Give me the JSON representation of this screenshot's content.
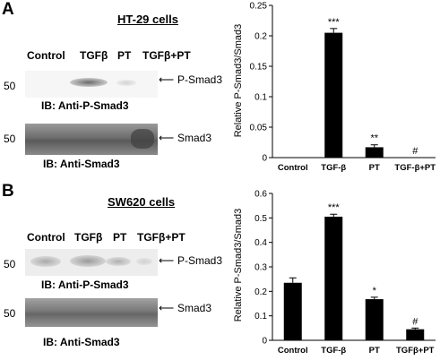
{
  "panels": [
    {
      "letter": "A",
      "cells": "HT-29 cells",
      "lanes": [
        "Control",
        "TGFβ",
        "PT",
        "TGFβ+PT"
      ],
      "blots": [
        {
          "mw": "50",
          "band": "P-Smad3",
          "ib": "IB: Anti-P-Smad3"
        },
        {
          "mw": "50",
          "band": "Smad3",
          "ib": "IB: Anti-Smad3"
        }
      ]
    },
    {
      "letter": "B",
      "cells": "SW620 cells",
      "lanes": [
        "Control",
        "TGFβ",
        "PT",
        "TGFβ+PT"
      ],
      "blots": [
        {
          "mw": "50",
          "band": "P-Smad3",
          "ib": "IB: Anti-P-Smad3"
        },
        {
          "mw": "50",
          "band": "Smad3",
          "ib": "IB: Anti-Smad3"
        }
      ]
    }
  ],
  "chart_data": [
    {
      "type": "bar",
      "categories": [
        "Control",
        "TGF-β",
        "PT",
        "TGF-β+PT"
      ],
      "values": [
        0.0,
        0.205,
        0.017,
        0.0
      ],
      "errors": [
        0.0,
        0.007,
        0.004,
        0.0
      ],
      "annotations": [
        "",
        "***",
        "**",
        "#"
      ],
      "ylabel": "Relative P-Smad3/Smad3",
      "ylim": [
        0,
        0.25
      ],
      "yticks": [
        0,
        0.05,
        0.1,
        0.15,
        0.2,
        0.25
      ],
      "yticklabels": [
        "0",
        "0.05",
        "0.1",
        "0.15",
        "0.2",
        "0.25"
      ],
      "bar_color": "#000000"
    },
    {
      "type": "bar",
      "categories": [
        "Control",
        "TGF-β",
        "PT",
        "TGFβ+PT"
      ],
      "values": [
        0.235,
        0.505,
        0.168,
        0.045
      ],
      "errors": [
        0.02,
        0.01,
        0.008,
        0.005
      ],
      "annotations": [
        "",
        "***",
        "*",
        "#"
      ],
      "ylabel": "Relative P-Smad3/Smad3",
      "ylim": [
        0,
        0.6
      ],
      "yticks": [
        0,
        0.1,
        0.2,
        0.3,
        0.4,
        0.5,
        0.6
      ],
      "yticklabels": [
        "0",
        "0.1",
        "0.2",
        "0.3",
        "0.4",
        "0.5",
        "0.6"
      ],
      "bar_color": "#000000"
    }
  ]
}
